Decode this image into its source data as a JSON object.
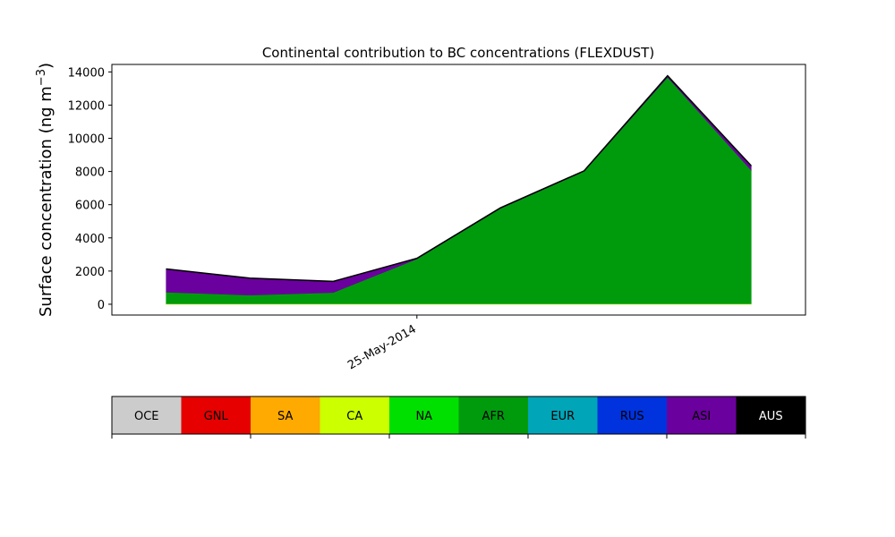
{
  "chart_data": {
    "type": "area",
    "title": "Continental contribution to BC concentrations (FLEXDUST)",
    "xlabel": "",
    "ylabel": "Surface concentration (ng m",
    "ylabel_sup": "−3",
    "ylabel_close": ")",
    "x": [
      "2014-05-22",
      "2014-05-23",
      "2014-05-24",
      "2014-05-25",
      "2014-05-26",
      "2014-05-27",
      "2014-05-28",
      "2014-05-29"
    ],
    "xticks": [
      {
        "value": "2014-05-25",
        "label": "25-May-2014"
      }
    ],
    "ylim": [
      -650,
      14450
    ],
    "yticks": [
      0,
      2000,
      4000,
      6000,
      8000,
      10000,
      12000,
      14000
    ],
    "series": [
      {
        "name": "CA",
        "color": "#ccff00",
        "values": [
          30,
          30,
          30,
          30,
          30,
          30,
          30,
          30
        ]
      },
      {
        "name": "AFR",
        "color": "#009a0d",
        "values": [
          700,
          520,
          680,
          2700,
          5750,
          7980,
          13650,
          8050
        ]
      },
      {
        "name": "ASI",
        "color": "#6a009d",
        "values": [
          1380,
          1000,
          650,
          30,
          20,
          20,
          70,
          250
        ]
      },
      {
        "name": "AUS",
        "color": "#000000",
        "values": [
          20,
          20,
          20,
          10,
          10,
          10,
          20,
          20
        ]
      }
    ],
    "grid": false,
    "legend_placement": "bottom"
  },
  "colorbar": {
    "labels": [
      "OCE",
      "GNL",
      "SA",
      "CA",
      "NA",
      "AFR",
      "EUR",
      "RUS",
      "ASI",
      "AUS"
    ],
    "colors": [
      "#cccccc",
      "#e60000",
      "#ffaa00",
      "#ccff00",
      "#00e000",
      "#009a0d",
      "#00a5b8",
      "#0033dd",
      "#6a009d",
      "#000000"
    ],
    "label_colors": [
      "#000000",
      "#000000",
      "#000000",
      "#000000",
      "#000000",
      "#000000",
      "#000000",
      "#000000",
      "#000000",
      "#ffffff"
    ]
  }
}
